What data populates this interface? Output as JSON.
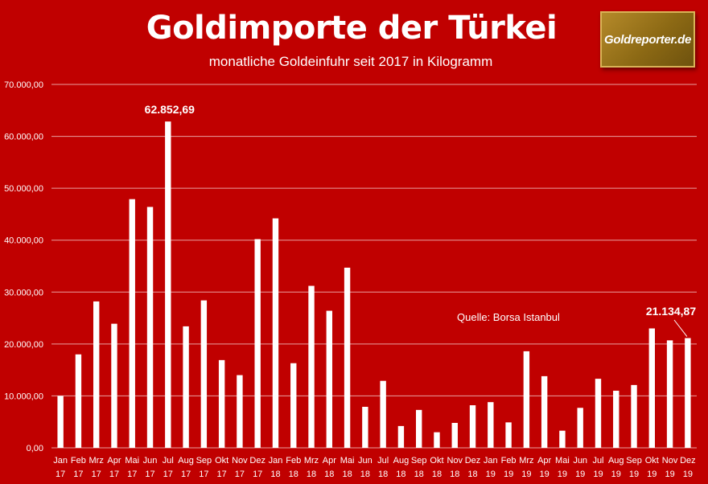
{
  "header": {
    "title": "Goldimporte der Türkei",
    "subtitle": "monatliche Goldeinfuhr seit 2017 in Kilogramm",
    "logo_text": "Goldreporter.de"
  },
  "colors": {
    "background": "#c00000",
    "bar": "#ffffff",
    "gridline": "#e8a0a0",
    "text": "#ffffff"
  },
  "chart_data": {
    "type": "bar",
    "title": "Goldimporte der Türkei",
    "subtitle": "monatliche Goldeinfuhr seit 2017 in Kilogramm",
    "xlabel": "",
    "ylabel": "",
    "ylim": [
      0,
      70000
    ],
    "yticks": [
      0,
      10000,
      20000,
      30000,
      40000,
      50000,
      60000,
      70000
    ],
    "ytick_labels": [
      "0,00",
      "10.000,00",
      "20.000,00",
      "30.000,00",
      "40.000,00",
      "50.000,00",
      "60.000,00",
      "70.000,00"
    ],
    "grid": true,
    "months": [
      "Jan",
      "Feb",
      "Mrz",
      "Apr",
      "Mai",
      "Jun",
      "Jul",
      "Aug",
      "Sep",
      "Okt",
      "Nov",
      "Dez",
      "Jan",
      "Feb",
      "Mrz",
      "Apr",
      "Mai",
      "Jun",
      "Jul",
      "Aug",
      "Sep",
      "Okt",
      "Nov",
      "Dez",
      "Jan",
      "Feb",
      "Mrz",
      "Apr",
      "Mai",
      "Jun",
      "Jul",
      "Aug",
      "Sep",
      "Okt",
      "Nov",
      "Dez"
    ],
    "years": [
      "17",
      "17",
      "17",
      "17",
      "17",
      "17",
      "17",
      "17",
      "17",
      "17",
      "17",
      "17",
      "18",
      "18",
      "18",
      "18",
      "18",
      "18",
      "18",
      "18",
      "18",
      "18",
      "18",
      "18",
      "19",
      "19",
      "19",
      "19",
      "19",
      "19",
      "19",
      "19",
      "19",
      "19",
      "19",
      "19"
    ],
    "values": [
      10000,
      18000,
      28200,
      23900,
      47900,
      46400,
      62852.69,
      23400,
      28400,
      16900,
      14000,
      40200,
      44200,
      16300,
      31200,
      26400,
      34700,
      7900,
      12900,
      4200,
      7300,
      3000,
      4800,
      8200,
      8800,
      4900,
      18600,
      13800,
      3300,
      7700,
      13300,
      11000,
      12100,
      23000,
      20700,
      21134.87
    ],
    "annotations": [
      {
        "label": "62.852,69",
        "index": 6
      },
      {
        "label": "21.134,87",
        "index": 35
      }
    ],
    "source": "Quelle: Borsa Istanbul"
  }
}
